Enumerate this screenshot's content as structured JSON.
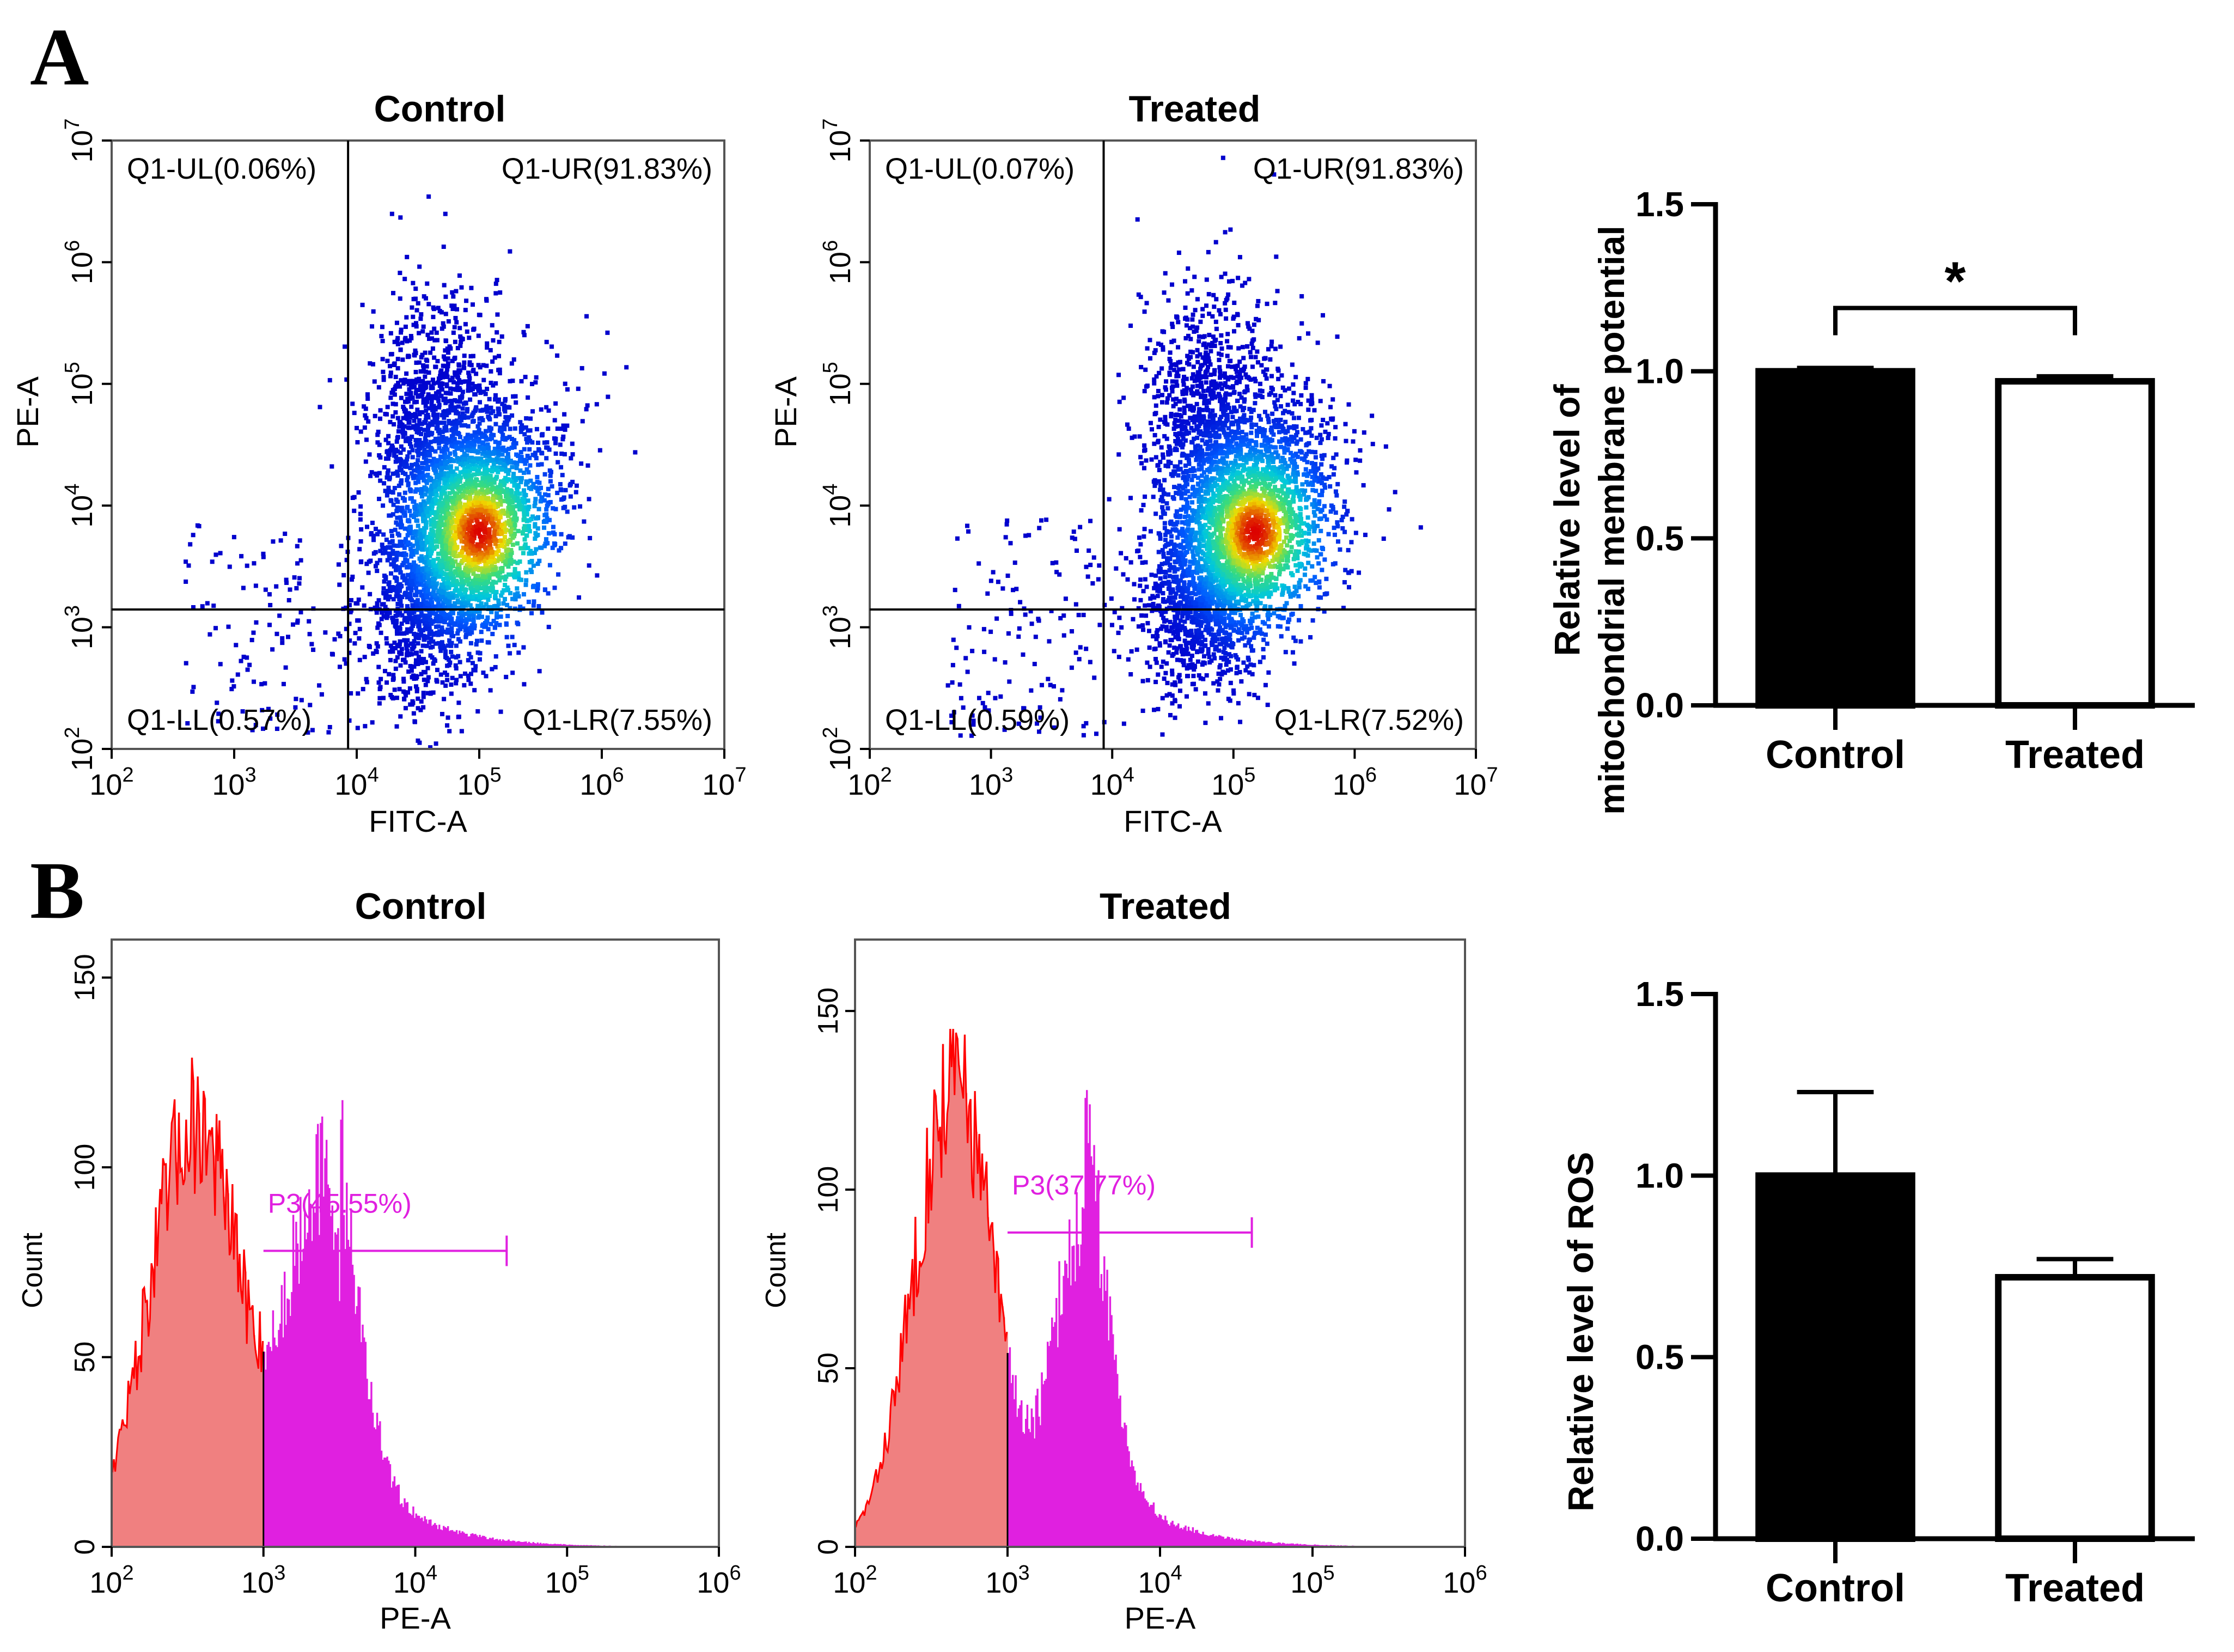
{
  "panel_labels": [
    "A",
    "B"
  ],
  "chart_data": [
    {
      "type": "scatter",
      "subtype": "flow-cytometry-density-quadrant",
      "title": "Control",
      "xlabel": "FITC-A",
      "ylabel": "PE-A",
      "xscale": "log10",
      "yscale": "log10",
      "xlim": [
        100,
        10000000
      ],
      "ylim": [
        100,
        10000000
      ],
      "x_ticks": [
        "10",
        "10",
        "10",
        "10",
        "10",
        "10"
      ],
      "x_tick_exponents": [
        "2",
        "3",
        "4",
        "5",
        "6",
        "7"
      ],
      "y_ticks": [
        "10",
        "10",
        "10",
        "10",
        "10",
        "10"
      ],
      "y_tick_exponents": [
        "2",
        "3",
        "4",
        "5",
        "6",
        "7"
      ],
      "gate_x": 8500,
      "gate_y": 1400,
      "population_center": [
        100000,
        6000
      ],
      "quadrants": [
        {
          "name": "Q1-UL",
          "label": "Q1-UL(0.06%)",
          "percent": 0.06,
          "position": "top-left"
        },
        {
          "name": "Q1-UR",
          "label": "Q1-UR(91.83%)",
          "percent": 91.83,
          "position": "top-right"
        },
        {
          "name": "Q1-LL",
          "label": "Q1-LL(0.57%)",
          "percent": 0.57,
          "position": "bottom-left"
        },
        {
          "name": "Q1-LR",
          "label": "Q1-LR(7.55%)",
          "percent": 7.55,
          "position": "bottom-right"
        }
      ]
    },
    {
      "type": "scatter",
      "subtype": "flow-cytometry-density-quadrant",
      "title": "Treated",
      "xlabel": "FITC-A",
      "ylabel": "PE-A",
      "xscale": "log10",
      "yscale": "log10",
      "xlim": [
        100,
        10000000
      ],
      "ylim": [
        100,
        10000000
      ],
      "x_ticks": [
        "10",
        "10",
        "10",
        "10",
        "10",
        "10"
      ],
      "x_tick_exponents": [
        "2",
        "3",
        "4",
        "5",
        "6",
        "7"
      ],
      "y_ticks": [
        "10",
        "10",
        "10",
        "10",
        "10",
        "10"
      ],
      "y_tick_exponents": [
        "2",
        "3",
        "4",
        "5",
        "6",
        "7"
      ],
      "gate_x": 8500,
      "gate_y": 1400,
      "population_center": [
        150000,
        6000
      ],
      "quadrants": [
        {
          "name": "Q1-UL",
          "label": "Q1-UL(0.07%)",
          "percent": 0.07,
          "position": "top-left"
        },
        {
          "name": "Q1-UR",
          "label": "Q1-UR(91.83%)",
          "percent": 91.83,
          "position": "top-right"
        },
        {
          "name": "Q1-LL",
          "label": "Q1-LL(0.59%)",
          "percent": 0.59,
          "position": "bottom-left"
        },
        {
          "name": "Q1-LR",
          "label": "Q1-LR(7.52%)",
          "percent": 7.52,
          "position": "bottom-right"
        }
      ]
    },
    {
      "type": "bar",
      "title": "",
      "categories": [
        "Control",
        "Treated"
      ],
      "values": [
        1.0,
        0.97
      ],
      "errors": [
        0.01,
        0.015
      ],
      "ylabel_lines": [
        "Relative level of",
        "mitochondrial membrane potential"
      ],
      "ylim": [
        0,
        1.5
      ],
      "y_ticks": [
        "0.0",
        "0.5",
        "1.0",
        "1.5"
      ],
      "significance": "*",
      "bar_fills": [
        "#000000",
        "#ffffff"
      ]
    },
    {
      "type": "area",
      "subtype": "flow-cytometry-histogram",
      "title": "Control",
      "xlabel": "PE-A",
      "ylabel": "Count",
      "xscale": "log10",
      "xlim": [
        100,
        1000000
      ],
      "ylim": [
        0,
        160
      ],
      "x_ticks": [
        "10",
        "10",
        "10",
        "10",
        "10"
      ],
      "x_tick_exponents": [
        "2",
        "3",
        "4",
        "5",
        "6"
      ],
      "y_ticks": [
        "0",
        "50",
        "100",
        "150"
      ],
      "gate_label": "P3(45.55%)",
      "gate_percent": 45.55,
      "gate_range": [
        1000,
        40000
      ],
      "gate_marker_count": 78,
      "peak_count": 137,
      "components": [
        {
          "center_log": 2.55,
          "sd": 0.3,
          "amp": 112
        },
        {
          "center_log": 3.37,
          "sd": 0.2,
          "amp": 95
        }
      ],
      "colors": {
        "below_gate": "#f08080",
        "in_gate": "#e020e0",
        "outline": "#ff0000"
      }
    },
    {
      "type": "area",
      "subtype": "flow-cytometry-histogram",
      "title": "Treated",
      "xlabel": "PE-A",
      "ylabel": "Count",
      "xscale": "log10",
      "xlim": [
        100,
        1000000
      ],
      "ylim": [
        0,
        170
      ],
      "x_ticks": [
        "10",
        "10",
        "10",
        "10",
        "10"
      ],
      "x_tick_exponents": [
        "2",
        "3",
        "4",
        "5",
        "6"
      ],
      "y_ticks": [
        "0",
        "50",
        "100",
        "150"
      ],
      "gate_label": "P3(37.77%)",
      "gate_percent": 37.77,
      "gate_range": [
        1000,
        40000
      ],
      "gate_marker_count": 88,
      "peak_count": 145,
      "components": [
        {
          "center_log": 2.65,
          "sd": 0.26,
          "amp": 130
        },
        {
          "center_log": 3.47,
          "sd": 0.17,
          "amp": 88
        }
      ],
      "colors": {
        "below_gate": "#f08080",
        "in_gate": "#e020e0",
        "outline": "#ff0000"
      }
    },
    {
      "type": "bar",
      "title": "",
      "categories": [
        "Control",
        "Treated"
      ],
      "values": [
        1.0,
        0.72
      ],
      "errors": [
        0.23,
        0.05
      ],
      "ylabel_lines": [
        "Relative level of  ROS"
      ],
      "ylim": [
        0,
        1.5
      ],
      "y_ticks": [
        "0.0",
        "0.5",
        "1.0",
        "1.5"
      ],
      "significance": "",
      "bar_fills": [
        "#000000",
        "#ffffff"
      ]
    }
  ]
}
